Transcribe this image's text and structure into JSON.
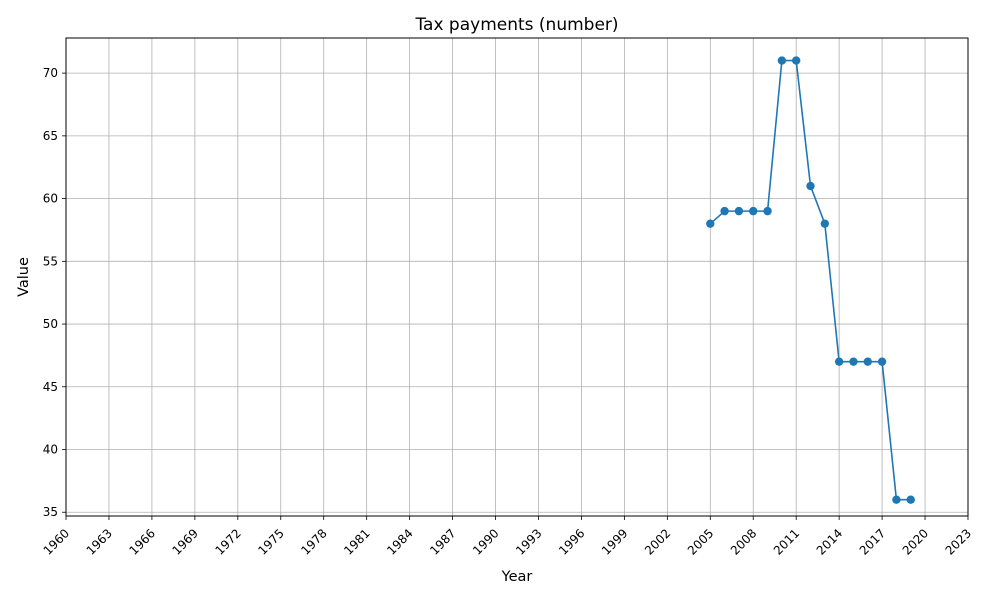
{
  "chart_data": {
    "type": "line",
    "title": "Tax payments (number)",
    "xlabel": "Year",
    "ylabel": "Value",
    "xlim": [
      1960,
      2023
    ],
    "ylim": [
      34.7,
      72.8
    ],
    "xticks": [
      1960,
      1963,
      1966,
      1969,
      1972,
      1975,
      1978,
      1981,
      1984,
      1987,
      1990,
      1993,
      1996,
      1999,
      2002,
      2005,
      2008,
      2011,
      2014,
      2017,
      2020,
      2023
    ],
    "yticks": [
      35,
      40,
      45,
      50,
      55,
      60,
      65,
      70
    ],
    "grid": true,
    "series": [
      {
        "color": "#1f77b4",
        "marker": "circle",
        "x": [
          2005,
          2006,
          2007,
          2008,
          2009,
          2010,
          2011,
          2012,
          2013,
          2014,
          2015,
          2016,
          2017,
          2018,
          2019
        ],
        "values": [
          58,
          59,
          59,
          59,
          59,
          71,
          71,
          61,
          58,
          47,
          47,
          47,
          47,
          36,
          36
        ]
      }
    ]
  }
}
